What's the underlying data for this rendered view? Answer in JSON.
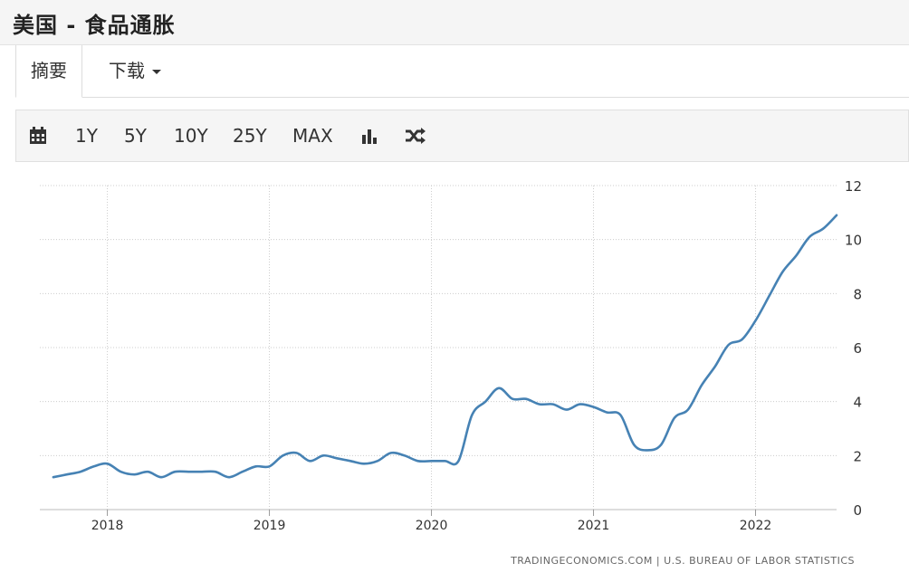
{
  "header": {
    "title": "美国 - 食品通胀"
  },
  "tabs": [
    {
      "label": "摘要"
    },
    {
      "label": "下载"
    }
  ],
  "toolbar": {
    "ranges": [
      "1Y",
      "5Y",
      "10Y",
      "25Y",
      "MAX"
    ],
    "icons": [
      "calendar-icon",
      "bar-chart-icon",
      "shuffle-icon"
    ]
  },
  "chart_data": {
    "type": "line",
    "title": "",
    "xlabel": "",
    "ylabel": "",
    "x_ticks": [
      "2018",
      "2019",
      "2020",
      "2021",
      "2022"
    ],
    "y_ticks": [
      "0",
      "2",
      "4",
      "6",
      "8",
      "10",
      "12"
    ],
    "ylim": [
      0,
      12
    ],
    "xlim": [
      "2017-08",
      "2022-07"
    ],
    "grid": true,
    "color": "#4682b4",
    "source": "TRADINGECONOMICS.COM  |  U.S. BUREAU OF LABOR STATISTICS",
    "series": [
      {
        "x": [
          "2017-09",
          "2017-10",
          "2017-11",
          "2017-12",
          "2018-01",
          "2018-02",
          "2018-03",
          "2018-04",
          "2018-05",
          "2018-06",
          "2018-07",
          "2018-08",
          "2018-09",
          "2018-10",
          "2018-11",
          "2018-12",
          "2019-01",
          "2019-02",
          "2019-03",
          "2019-04",
          "2019-05",
          "2019-06",
          "2019-07",
          "2019-08",
          "2019-09",
          "2019-10",
          "2019-11",
          "2019-12",
          "2020-01",
          "2020-02",
          "2020-03",
          "2020-04",
          "2020-05",
          "2020-06",
          "2020-07",
          "2020-08",
          "2020-09",
          "2020-10",
          "2020-11",
          "2020-12",
          "2021-01",
          "2021-02",
          "2021-03",
          "2021-04",
          "2021-05",
          "2021-06",
          "2021-07",
          "2021-08",
          "2021-09",
          "2021-10",
          "2021-11",
          "2021-12",
          "2022-01",
          "2022-02",
          "2022-03",
          "2022-04",
          "2022-05",
          "2022-06",
          "2022-07"
        ],
        "values": [
          1.2,
          1.3,
          1.4,
          1.6,
          1.7,
          1.4,
          1.3,
          1.4,
          1.2,
          1.4,
          1.4,
          1.4,
          1.4,
          1.2,
          1.4,
          1.6,
          1.6,
          2.0,
          2.1,
          1.8,
          2.0,
          1.9,
          1.8,
          1.7,
          1.8,
          2.1,
          2.0,
          1.8,
          1.8,
          1.8,
          1.8,
          3.5,
          4.0,
          4.5,
          4.1,
          4.1,
          3.9,
          3.9,
          3.7,
          3.9,
          3.8,
          3.6,
          3.5,
          2.4,
          2.2,
          2.4,
          3.4,
          3.7,
          4.6,
          5.3,
          6.1,
          6.3,
          7.0,
          7.9,
          8.8,
          9.4,
          10.1,
          10.4,
          10.9
        ]
      }
    ]
  }
}
